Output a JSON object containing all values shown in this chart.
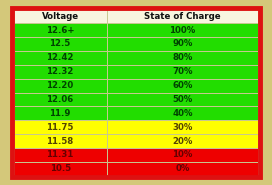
{
  "header": [
    "Voltage",
    "State of Charge"
  ],
  "rows": [
    [
      "12.6+",
      "100%"
    ],
    [
      "12.5",
      "90%"
    ],
    [
      "12.42",
      "80%"
    ],
    [
      "12.32",
      "70%"
    ],
    [
      "12.20",
      "60%"
    ],
    [
      "12.06",
      "50%"
    ],
    [
      "11.9",
      "40%"
    ],
    [
      "11.75",
      "30%"
    ],
    [
      "11.58",
      "20%"
    ],
    [
      "11.31",
      "10%"
    ],
    [
      "10.5",
      "0%"
    ]
  ],
  "row_colors": [
    "#22dd00",
    "#22dd00",
    "#22dd00",
    "#22dd00",
    "#22dd00",
    "#22dd00",
    "#22dd00",
    "#ffff00",
    "#ffff00",
    "#ee0000",
    "#ee0000"
  ],
  "header_bg": "#f8f5e0",
  "outer_border_color": "#d4c87a",
  "inner_border_color": "#dd1111",
  "grid_color": "#c8c890",
  "text_color_green": "#004400",
  "text_color_yellow": "#554400",
  "text_color_red": "#660000",
  "header_text_color": "#111111",
  "col_split": 0.38
}
